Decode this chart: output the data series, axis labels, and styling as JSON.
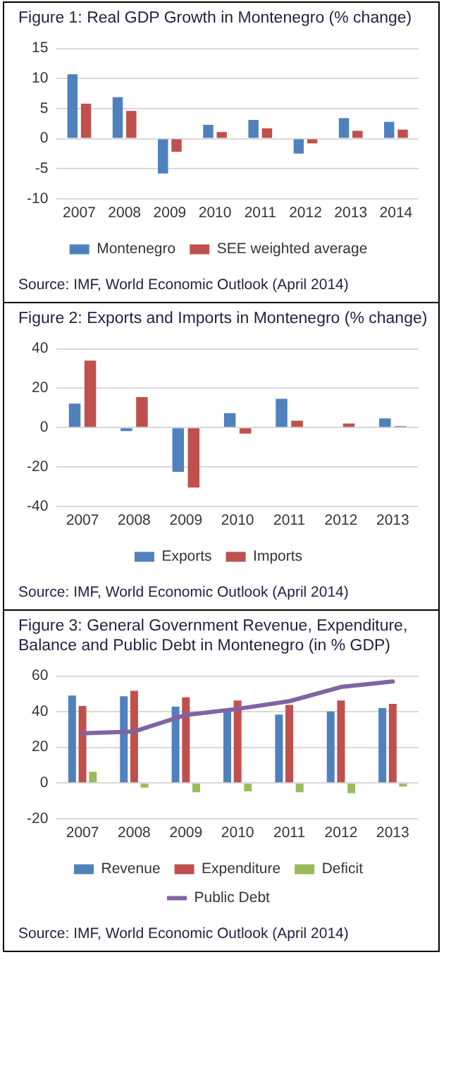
{
  "chart_data": [
    {
      "type": "bar",
      "title": "Figure 1: Real GDP Growth in Montenegro (% change)",
      "categories": [
        "2007",
        "2008",
        "2009",
        "2010",
        "2011",
        "2012",
        "2013",
        "2014"
      ],
      "series": [
        {
          "name": "Montenegro",
          "color": "#4f81bd",
          "values": [
            10.7,
            6.9,
            -5.8,
            2.3,
            3.1,
            -2.5,
            3.4,
            2.8
          ]
        },
        {
          "name": "SEE weighted average",
          "color": "#c0504d",
          "values": [
            5.8,
            4.6,
            -2.2,
            1.1,
            1.7,
            -0.8,
            1.3,
            1.5
          ]
        }
      ],
      "ylim": [
        -10,
        15
      ],
      "yticks": [
        -10,
        -5,
        0,
        5,
        10,
        15
      ],
      "grid": "y",
      "legend": "bottom",
      "annotations": [
        "Source: IMF, World Economic Outlook (April 2014)"
      ]
    },
    {
      "type": "bar",
      "title": "Figure 2: Exports and Imports in Montenegro (% change)",
      "categories": [
        "2007",
        "2008",
        "2009",
        "2010",
        "2011",
        "2012",
        "2013"
      ],
      "series": [
        {
          "name": "Exports",
          "color": "#4f81bd",
          "values": [
            12.2,
            -1.8,
            -22.5,
            7.3,
            14.6,
            null,
            4.6
          ]
        },
        {
          "name": "Imports",
          "color": "#c0504d",
          "values": [
            34,
            15.5,
            -30.5,
            -3.1,
            3.5,
            2,
            0.7
          ]
        }
      ],
      "ylim": [
        -40,
        40
      ],
      "yticks": [
        -40,
        -20,
        0,
        20,
        40
      ],
      "grid": "y",
      "legend": "bottom",
      "annotations": [
        "Source: IMF, World Economic Outlook (April 2014)"
      ]
    },
    {
      "type": "bar",
      "title": "Figure 3: General Government Revenue, Expenditure, Balance and Public Debt in Montenegro (in % GDP)",
      "categories": [
        "2007",
        "2008",
        "2009",
        "2010",
        "2011",
        "2012",
        "2013"
      ],
      "series": [
        {
          "name": "Revenue",
          "color": "#4f81bd",
          "values": [
            49.1,
            48.7,
            42.8,
            41.4,
            38.4,
            40.2,
            42
          ]
        },
        {
          "name": "Expenditure",
          "color": "#c0504d",
          "values": [
            43.2,
            51.7,
            48.1,
            46.3,
            43.8,
            46.3,
            44.4
          ]
        },
        {
          "name": "Deficit",
          "color": "#9bbb59",
          "values": [
            6.3,
            -2.6,
            -5.1,
            -4.6,
            -5.1,
            -5.7,
            -2
          ]
        },
        {
          "name": "Public Debt",
          "color": "#8064a2",
          "type": "line",
          "values": [
            27.9,
            28.9,
            38.2,
            41.6,
            45.9,
            53.9,
            57
          ]
        }
      ],
      "ylim": [
        -20,
        60
      ],
      "yticks": [
        -20,
        0,
        20,
        40,
        60
      ],
      "grid": "y",
      "legend": "bottom",
      "marker": "none",
      "annotations": [
        "Source: IMF, World Economic Outlook (April 2014)"
      ]
    }
  ]
}
